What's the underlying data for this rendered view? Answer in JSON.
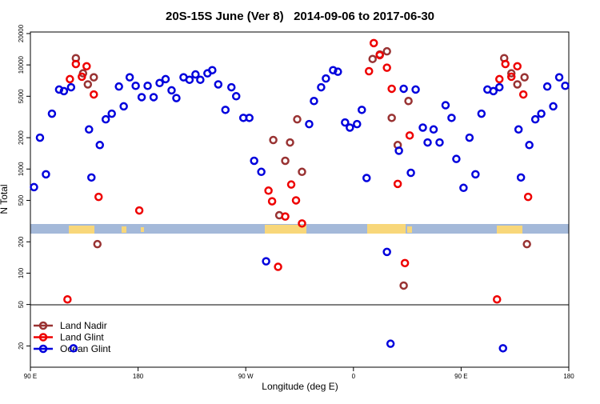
{
  "chart_data": {
    "type": "scatter",
    "title": "20S-15S June (Ver 8)   2014-09-06 to 2017-06-30",
    "xlabel": "Longitude (deg E)",
    "ylabel": "N Total",
    "log_y": true,
    "legend": "lower left",
    "xlim": [
      90,
      540
    ],
    "xticks": [
      {
        "value": 90,
        "label": "90 E"
      },
      {
        "value": 180,
        "label": "180"
      },
      {
        "value": 270,
        "label": "90 W"
      },
      {
        "value": 360,
        "label": "0"
      },
      {
        "value": 450,
        "label": "90 E"
      },
      {
        "value": 540,
        "label": "180"
      }
    ],
    "ylim": [
      12.5,
      20700
    ],
    "yticks": [
      20000,
      10000,
      5000,
      2000,
      1000,
      500,
      200,
      100,
      50,
      20
    ],
    "series": [
      {
        "name": "Land Nadir",
        "color": "#993333",
        "x": [
          128,
          134,
          138,
          143,
          146,
          293,
          298,
          303,
          307,
          313,
          317,
          376,
          382,
          388,
          392,
          397,
          402,
          406,
          486,
          492,
          497,
          503,
          505
        ],
        "values": [
          11600,
          8300,
          6500,
          7600,
          190,
          1900,
          360,
          1200,
          1800,
          3000,
          940,
          11400,
          12600,
          13500,
          3100,
          1700,
          76,
          4500,
          11600,
          8300,
          6500,
          7600,
          190
        ]
      },
      {
        "name": "Land Glint",
        "color": "#ee0000",
        "x": [
          121,
          123,
          128,
          133,
          137,
          143,
          147,
          181,
          289,
          292,
          297,
          303,
          308,
          312,
          317,
          373,
          377,
          382,
          388,
          392,
          397,
          403,
          407,
          480,
          482,
          487,
          492,
          497,
          502,
          506
        ],
        "values": [
          56,
          7300,
          10200,
          7700,
          9700,
          5200,
          540,
          400,
          620,
          490,
          115,
          350,
          710,
          500,
          300,
          8700,
          16200,
          12400,
          9400,
          5900,
          720,
          125,
          2100,
          56,
          7300,
          10200,
          7700,
          9700,
          5200,
          540
        ]
      },
      {
        "name": "Ocean Glint",
        "color": "#0000dd",
        "x": [
          93,
          98,
          103,
          108,
          114,
          118,
          124,
          126,
          139,
          141,
          148,
          153,
          158,
          164,
          168,
          173,
          178,
          183,
          188,
          193,
          198,
          203,
          208,
          212,
          218,
          223,
          228,
          232,
          238,
          242,
          247,
          253,
          258,
          262,
          268,
          273,
          277,
          283,
          287,
          323,
          327,
          333,
          337,
          343,
          347,
          353,
          357,
          363,
          367,
          371,
          388,
          391,
          398,
          402,
          408,
          412,
          418,
          422,
          427,
          432,
          437,
          442,
          446,
          452,
          457,
          462,
          467,
          472,
          477,
          482,
          485,
          498,
          500,
          507,
          512,
          517,
          522,
          527,
          532,
          537
        ],
        "values": [
          670,
          2000,
          890,
          3400,
          5800,
          5600,
          6100,
          19,
          2400,
          830,
          1700,
          3000,
          3400,
          6200,
          4000,
          7600,
          6300,
          4900,
          6300,
          4900,
          6700,
          7300,
          5700,
          4800,
          7600,
          7200,
          8100,
          7200,
          8300,
          8900,
          6500,
          3700,
          6100,
          5000,
          3100,
          3100,
          1200,
          940,
          130,
          2700,
          4500,
          6100,
          7400,
          8900,
          8600,
          2800,
          2500,
          2700,
          3700,
          820,
          160,
          21,
          1500,
          5900,
          920,
          5800,
          2500,
          1800,
          2400,
          1800,
          4100,
          3100,
          1250,
          660,
          2000,
          890,
          3400,
          5800,
          5600,
          6100,
          19,
          2400,
          830,
          1700,
          3000,
          3400,
          6200,
          4000,
          7600,
          6300
        ]
      }
    ]
  }
}
